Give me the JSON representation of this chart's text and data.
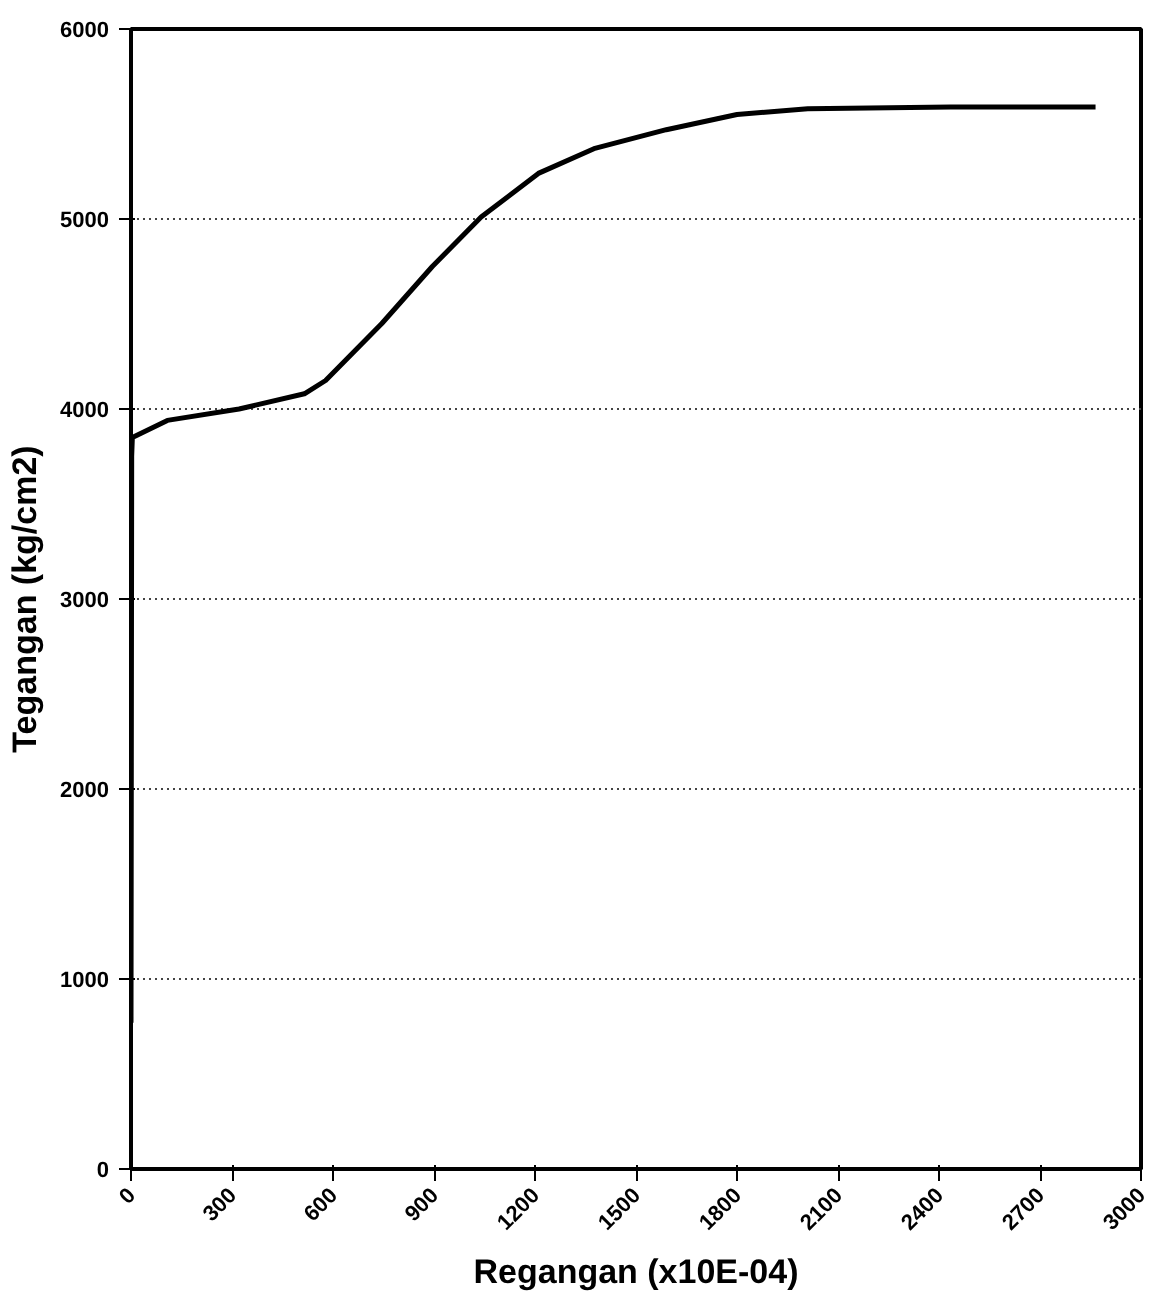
{
  "chart_data": {
    "type": "line",
    "xlabel": "Regangan (x10E-04)",
    "ylabel": "Tegangan (kg/cm2)",
    "xlim": [
      0,
      3000
    ],
    "xticks": [
      0,
      300,
      600,
      900,
      1200,
      1500,
      1800,
      2100,
      2400,
      2700,
      3000
    ],
    "ylim": [
      0,
      6000
    ],
    "yticks": [
      0,
      1000,
      2000,
      3000,
      4000,
      5000,
      6000
    ],
    "grid": "y",
    "marker": "none",
    "line_style": "solid",
    "series": [
      {
        "color": "#000000",
        "x": [
          0,
          2,
          4,
          108,
          321,
          515,
          578,
          745,
          895,
          1040,
          1210,
          1375,
          1590,
          1800,
          2010,
          2435,
          2865
        ],
        "values": [
          770,
          3750,
          3850,
          3940,
          4000,
          4080,
          4150,
          4450,
          4750,
          5010,
          5240,
          5370,
          5470,
          5550,
          5580,
          5590,
          5590
        ]
      }
    ]
  }
}
